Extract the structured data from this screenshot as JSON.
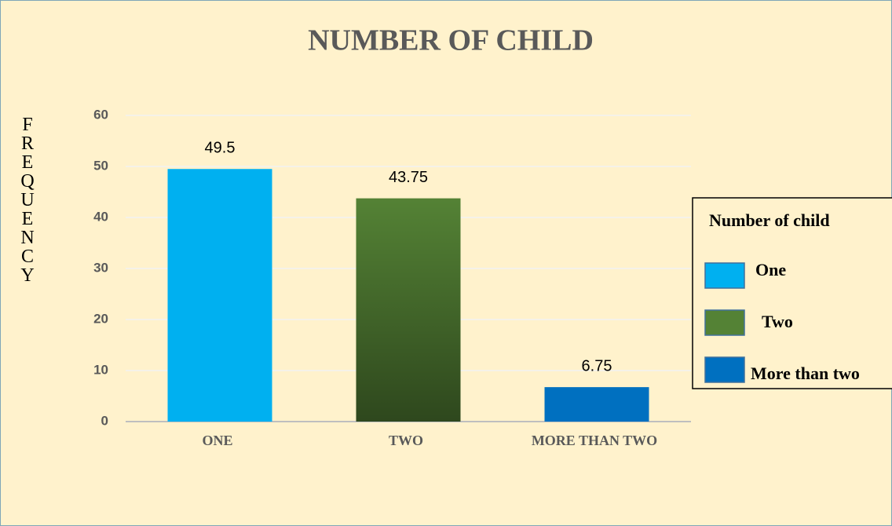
{
  "chart_data": {
    "type": "bar",
    "title": "NUMBER OF CHILD",
    "y_label": "FREQUENCY",
    "categories": [
      "ONE",
      "TWO",
      "MORE THAN TWO"
    ],
    "values": [
      49.5,
      43.75,
      6.75
    ],
    "colors": [
      "#00b0f0",
      "#548235",
      "#0070c0"
    ],
    "ylim": [
      0,
      60
    ],
    "yticks": [
      0,
      10,
      20,
      30,
      40,
      50,
      60
    ],
    "grid": true,
    "legend": {
      "title": "Number of child",
      "labels": [
        "One",
        "Two",
        "More than two"
      ],
      "position": "right"
    }
  }
}
